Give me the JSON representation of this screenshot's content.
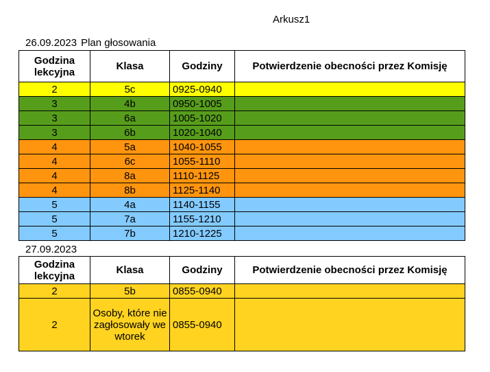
{
  "sheet": {
    "title": "Arkusz1"
  },
  "colors": {
    "yellow": "#ffff00",
    "green": "#579d1c",
    "orange": "#ff950e",
    "blue": "#83caff",
    "gold": "#ffd320"
  },
  "headers": {
    "col1": "Godzina lekcyjna",
    "col2": "Klasa",
    "col3": "Godziny",
    "col4": "Potwierdzenie obecności przez Komisję"
  },
  "day1": {
    "date": "26.09.2023",
    "title": "Plan głosowania",
    "rows": [
      {
        "lesson": "2",
        "class": "5c",
        "hours": "0925-0940",
        "confirm": "",
        "color": "#ffff00"
      },
      {
        "lesson": "3",
        "class": "4b",
        "hours": "0950-1005",
        "confirm": "",
        "color": "#579d1c"
      },
      {
        "lesson": "3",
        "class": "6a",
        "hours": "1005-1020",
        "confirm": "",
        "color": "#579d1c"
      },
      {
        "lesson": "3",
        "class": "6b",
        "hours": "1020-1040",
        "confirm": "",
        "color": "#579d1c"
      },
      {
        "lesson": "4",
        "class": "5a",
        "hours": "1040-1055",
        "confirm": "",
        "color": "#ff950e"
      },
      {
        "lesson": "4",
        "class": "6c",
        "hours": "1055-1110",
        "confirm": "",
        "color": "#ff950e"
      },
      {
        "lesson": "4",
        "class": "8a",
        "hours": "1110-1125",
        "confirm": "",
        "color": "#ff950e"
      },
      {
        "lesson": "4",
        "class": "8b",
        "hours": "1125-1140",
        "confirm": "",
        "color": "#ff950e"
      },
      {
        "lesson": "5",
        "class": "4a",
        "hours": "1140-1155",
        "confirm": "",
        "color": "#83caff"
      },
      {
        "lesson": "5",
        "class": "7a",
        "hours": "1155-1210",
        "confirm": "",
        "color": "#83caff"
      },
      {
        "lesson": "5",
        "class": "7b",
        "hours": "1210-1225",
        "confirm": "",
        "color": "#83caff"
      }
    ]
  },
  "day2": {
    "date": "27.09.2023",
    "rows": [
      {
        "lesson": "2",
        "class": "5b",
        "hours": "0855-0940",
        "confirm": "",
        "color": "#ffd320"
      },
      {
        "lesson": "2",
        "class": "Osoby, które nie zagłosowały we wtorek",
        "hours": "0855-0940",
        "confirm": "",
        "color": "#ffd320"
      }
    ]
  }
}
